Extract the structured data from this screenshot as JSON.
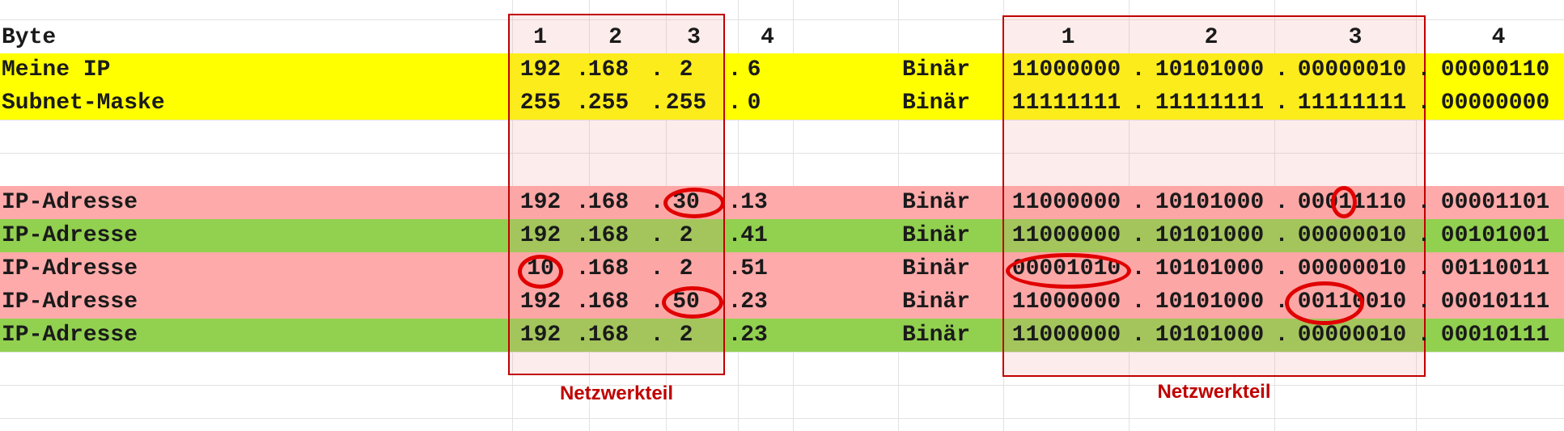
{
  "header": {
    "label": "Byte",
    "dec_bytes": [
      "1",
      "2",
      "3",
      "4"
    ],
    "bin_bytes": [
      "1",
      "2",
      "3",
      "4"
    ]
  },
  "rows": [
    {
      "name": "Meine IP",
      "fill": "#ffff00",
      "dec": [
        "192",
        "168",
        "2",
        "6"
      ],
      "bin_label": "Binär",
      "bin": [
        "11000000",
        "10101000",
        "00000010",
        "00000110"
      ]
    },
    {
      "name": "Subnet-Maske",
      "fill": "#ffff00",
      "dec": [
        "255",
        "255",
        "255",
        "0"
      ],
      "bin_label": "Binär",
      "bin": [
        "11111111",
        "11111111",
        "11111111",
        "00000000"
      ]
    },
    {
      "name": "IP-Adresse",
      "fill": "#ffaaaa",
      "dec": [
        "192",
        "168",
        "30",
        "13"
      ],
      "bin_label": "Binär",
      "bin": [
        "11000000",
        "10101000",
        "00011110",
        "00001101"
      ]
    },
    {
      "name": "IP-Adresse",
      "fill": "#92d050",
      "dec": [
        "192",
        "168",
        "2",
        "41"
      ],
      "bin_label": "Binär",
      "bin": [
        "11000000",
        "10101000",
        "00000010",
        "00101001"
      ]
    },
    {
      "name": "IP-Adresse",
      "fill": "#ffaaaa",
      "dec": [
        "10",
        "168",
        "2",
        "51"
      ],
      "bin_label": "Binär",
      "bin": [
        "00001010",
        "10101000",
        "00000010",
        "00110011"
      ]
    },
    {
      "name": "IP-Adresse",
      "fill": "#ffaaaa",
      "dec": [
        "192",
        "168",
        "50",
        "23"
      ],
      "bin_label": "Binär",
      "bin": [
        "11000000",
        "10101000",
        "00110010",
        "00010111"
      ]
    },
    {
      "name": "IP-Adresse",
      "fill": "#92d050",
      "dec": [
        "192",
        "168",
        "2",
        "23"
      ],
      "bin_label": "Binär",
      "bin": [
        "11000000",
        "10101000",
        "00000010",
        "00010111"
      ]
    }
  ],
  "separator": ".",
  "annotations": {
    "network_part_label_dec": "Netzwerkteil",
    "network_part_label_bin": "Netzwerkteil",
    "box_color": "#c00000",
    "highlight_color": "#e00000"
  }
}
